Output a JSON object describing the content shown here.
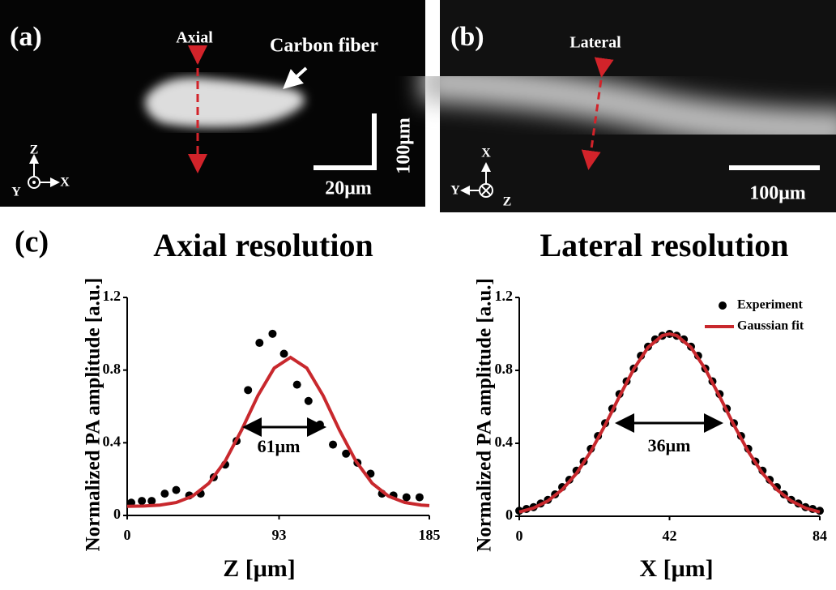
{
  "panels": [
    {
      "label": "(a)",
      "arrow_label": "Axial",
      "object_label": "Carbon fiber",
      "scale_x": "20μm",
      "scale_y": "100μm",
      "axis_up": "Z",
      "axis_right": "X",
      "axis_left": "Y"
    },
    {
      "label": "(b)",
      "arrow_label": "Lateral",
      "scale_x": "100μm",
      "axis_up": "X",
      "axis_left": "Y",
      "axis_out": "Z"
    }
  ],
  "figure_label": "(c)",
  "chart_data": [
    {
      "type": "scatter",
      "title": "Axial resolution",
      "x_label": "Z [μm]",
      "y_label": "Normalized PA amplitude [a.u.]",
      "xlim": [
        0,
        185
      ],
      "xticks": [
        0,
        93,
        185
      ],
      "ylim": [
        0,
        1.2
      ],
      "yticks": [
        0,
        0.4,
        0.8,
        1.2
      ],
      "annotation": "61μm",
      "series": [
        {
          "mode": "markers",
          "color": "#000000",
          "x": [
            2.5,
            9,
            15,
            23,
            30,
            38,
            45,
            53,
            60,
            67,
            74,
            81,
            89,
            96,
            104,
            111,
            118,
            126,
            134,
            141,
            149,
            156,
            163,
            171,
            179
          ],
          "values": [
            0.07,
            0.08,
            0.08,
            0.12,
            0.14,
            0.11,
            0.12,
            0.21,
            0.28,
            0.41,
            0.69,
            0.95,
            1.0,
            0.89,
            0.72,
            0.63,
            0.5,
            0.39,
            0.34,
            0.29,
            0.23,
            0.12,
            0.11,
            0.1,
            0.1
          ]
        },
        {
          "mode": "line",
          "color": "#c8282d",
          "x": [
            0,
            10,
            20,
            30,
            40,
            50,
            60,
            70,
            80,
            90,
            100,
            110,
            120,
            130,
            140,
            150,
            160,
            170,
            180,
            185
          ],
          "values": [
            0.05,
            0.052,
            0.057,
            0.071,
            0.106,
            0.177,
            0.299,
            0.469,
            0.659,
            0.811,
            0.87,
            0.811,
            0.659,
            0.469,
            0.299,
            0.177,
            0.106,
            0.071,
            0.057,
            0.054
          ]
        }
      ]
    },
    {
      "type": "scatter",
      "title": "Lateral resolution",
      "x_label": "X [μm]",
      "y_label": "Normalized PA amplitude [a.u.]",
      "xlim": [
        0,
        84
      ],
      "xticks": [
        0,
        42,
        84
      ],
      "ylim": [
        0,
        1.2
      ],
      "yticks": [
        0,
        0.4,
        0.8,
        1.2
      ],
      "annotation": "36μm",
      "legend": "upper right",
      "series": [
        {
          "name": "Experiment",
          "mode": "markers",
          "color": "#000000",
          "x": [
            0,
            2,
            4,
            6,
            8,
            10,
            12,
            14,
            16,
            18,
            20,
            22,
            24,
            26,
            28,
            30,
            32,
            34,
            36,
            38,
            40,
            42,
            44,
            46,
            48,
            50,
            52,
            54,
            56,
            58,
            60,
            62,
            64,
            66,
            68,
            70,
            72,
            74,
            76,
            78,
            80,
            82,
            84
          ],
          "values": [
            0.03,
            0.04,
            0.05,
            0.07,
            0.09,
            0.12,
            0.16,
            0.2,
            0.25,
            0.3,
            0.37,
            0.44,
            0.51,
            0.59,
            0.67,
            0.74,
            0.81,
            0.88,
            0.93,
            0.97,
            0.99,
            1.0,
            0.99,
            0.97,
            0.93,
            0.88,
            0.81,
            0.74,
            0.67,
            0.59,
            0.51,
            0.44,
            0.37,
            0.3,
            0.25,
            0.2,
            0.16,
            0.12,
            0.09,
            0.07,
            0.05,
            0.04,
            0.03
          ]
        },
        {
          "name": "Gaussian fit",
          "mode": "line",
          "color": "#c8282d",
          "x": [
            0,
            4,
            8,
            12,
            16,
            20,
            24,
            28,
            32,
            36,
            40,
            42,
            44,
            48,
            52,
            56,
            60,
            64,
            68,
            72,
            76,
            80,
            84
          ],
          "values": [
            0.023,
            0.045,
            0.084,
            0.146,
            0.235,
            0.355,
            0.5,
            0.657,
            0.807,
            0.926,
            0.991,
            1.0,
            0.991,
            0.926,
            0.807,
            0.657,
            0.5,
            0.355,
            0.235,
            0.146,
            0.084,
            0.045,
            0.023
          ]
        }
      ]
    }
  ]
}
